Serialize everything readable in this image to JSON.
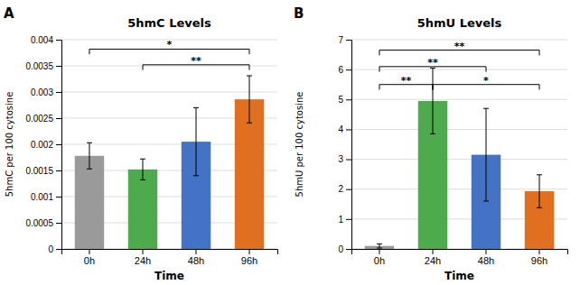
{
  "chart_data": [
    {
      "type": "bar",
      "title": "5hmC Levels",
      "xlabel": "Time",
      "ylabel": "5hmC per 100 cytosine",
      "categories": [
        "0h",
        "24h",
        "48h",
        "96h"
      ],
      "values": [
        0.00178,
        0.00152,
        0.00205,
        0.00286
      ],
      "errors": [
        0.00025,
        0.0002,
        0.00065,
        0.00045
      ],
      "colors": [
        "#9a9a9a",
        "#4daa4d",
        "#4472c4",
        "#e07020"
      ],
      "ylim": [
        0,
        0.004
      ],
      "yticks": [
        0,
        0.0005,
        0.001,
        0.0015,
        0.002,
        0.0025,
        0.003,
        0.0035,
        0.004
      ],
      "grid": true,
      "annotations": [
        {
          "text": "A"
        },
        {
          "text": "*",
          "x1": "0h",
          "x2": "96h",
          "y": 0.00382
        },
        {
          "text": "**",
          "x1": "24h",
          "x2": "96h",
          "y": 0.00352
        }
      ]
    },
    {
      "type": "bar",
      "title": "5hmU Levels",
      "xlabel": "Time",
      "ylabel": "5hmU per 100 cytosine",
      "categories": [
        "0h",
        "24h",
        "48h",
        "96h"
      ],
      "values": [
        0.1,
        4.95,
        3.15,
        1.93
      ],
      "errors": [
        0.07,
        1.1,
        1.55,
        0.55
      ],
      "colors": [
        "#9a9a9a",
        "#4daa4d",
        "#4472c4",
        "#e07020"
      ],
      "ylim": [
        0,
        7
      ],
      "yticks": [
        0,
        1,
        2,
        3,
        4,
        5,
        6,
        7
      ],
      "grid": true,
      "annotations": [
        {
          "text": "B"
        },
        {
          "text": "**",
          "x1": "0h",
          "x2": "96h",
          "y": 6.65
        },
        {
          "text": "**",
          "x1": "0h",
          "x2": "48h",
          "y": 6.1
        },
        {
          "text": "**",
          "x1": "0h",
          "x2": "24h",
          "y": 5.5
        },
        {
          "text": "*",
          "x1": "24h",
          "x2": "96h",
          "y": 5.5
        }
      ]
    }
  ]
}
